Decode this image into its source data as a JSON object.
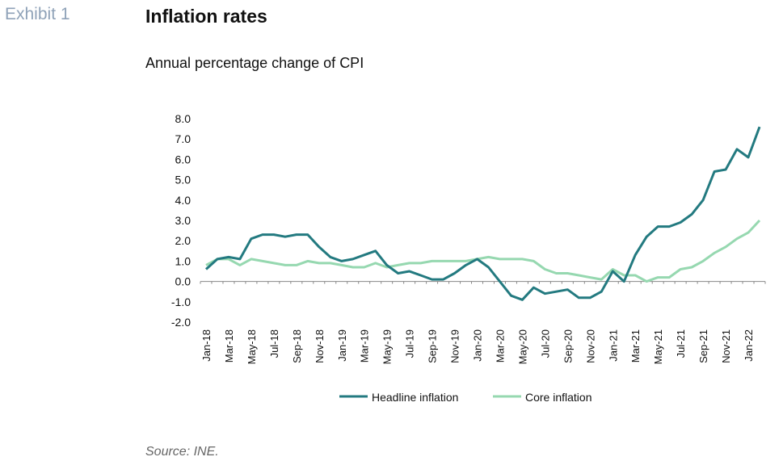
{
  "header": {
    "exhibit_label": "Exhibit 1",
    "title": "Inflation rates",
    "subtitle": "Annual percentage change of CPI"
  },
  "footer": {
    "source": "Source: INE."
  },
  "colors": {
    "headline": "#237a80",
    "core": "#96d8b0"
  },
  "chart_data": {
    "type": "line",
    "ylim": [
      -2,
      8
    ],
    "yticks": [
      -2,
      -1,
      0,
      1,
      2,
      3,
      4,
      5,
      6,
      7,
      8
    ],
    "ytick_labels": [
      "-2.0",
      "-1.0",
      "0.0",
      "1.0",
      "2.0",
      "3.0",
      "4.0",
      "5.0",
      "6.0",
      "7.0",
      "8.0"
    ],
    "grid": false,
    "legend_position": "bottom",
    "x": [
      "Jan-18",
      "Feb-18",
      "Mar-18",
      "Apr-18",
      "May-18",
      "Jun-18",
      "Jul-18",
      "Aug-18",
      "Sep-18",
      "Oct-18",
      "Nov-18",
      "Dec-18",
      "Jan-19",
      "Feb-19",
      "Mar-19",
      "Apr-19",
      "May-19",
      "Jun-19",
      "Jul-19",
      "Aug-19",
      "Sep-19",
      "Oct-19",
      "Nov-19",
      "Dec-19",
      "Jan-20",
      "Feb-20",
      "Mar-20",
      "Apr-20",
      "May-20",
      "Jun-20",
      "Jul-20",
      "Aug-20",
      "Sep-20",
      "Oct-20",
      "Nov-20",
      "Dec-20",
      "Jan-21",
      "Feb-21",
      "Mar-21",
      "Apr-21",
      "May-21",
      "Jun-21",
      "Jul-21",
      "Aug-21",
      "Sep-21",
      "Oct-21",
      "Nov-21",
      "Dec-21",
      "Jan-22",
      "Feb-22"
    ],
    "tick_labels": [
      "Jan-18",
      "Mar-18",
      "May-18",
      "Jul-18",
      "Sep-18",
      "Nov-18",
      "Jan-19",
      "Mar-19",
      "May-19",
      "Jul-19",
      "Sep-19",
      "Nov-19",
      "Jan-20",
      "Mar-20",
      "May-20",
      "Jul-20",
      "Sep-20",
      "Nov-20",
      "Jan-21",
      "Mar-21",
      "May-21",
      "Jul-21",
      "Sep-21",
      "Nov-21",
      "Jan-22"
    ],
    "series": [
      {
        "name": "Headline inflation",
        "values": [
          0.6,
          1.1,
          1.2,
          1.1,
          2.1,
          2.3,
          2.3,
          2.2,
          2.3,
          2.3,
          1.7,
          1.2,
          1.0,
          1.1,
          1.3,
          1.5,
          0.8,
          0.4,
          0.5,
          0.3,
          0.1,
          0.1,
          0.4,
          0.8,
          1.1,
          0.7,
          0.0,
          -0.7,
          -0.9,
          -0.3,
          -0.6,
          -0.5,
          -0.4,
          -0.8,
          -0.8,
          -0.5,
          0.5,
          0.0,
          1.3,
          2.2,
          2.7,
          2.7,
          2.9,
          3.3,
          4.0,
          5.4,
          5.5,
          6.5,
          6.1,
          7.6
        ]
      },
      {
        "name": "Core inflation",
        "values": [
          0.8,
          1.1,
          1.1,
          0.8,
          1.1,
          1.0,
          0.9,
          0.8,
          0.8,
          1.0,
          0.9,
          0.9,
          0.8,
          0.7,
          0.7,
          0.9,
          0.7,
          0.8,
          0.9,
          0.9,
          1.0,
          1.0,
          1.0,
          1.0,
          1.1,
          1.2,
          1.1,
          1.1,
          1.1,
          1.0,
          0.6,
          0.4,
          0.4,
          0.3,
          0.2,
          0.1,
          0.6,
          0.3,
          0.3,
          0.0,
          0.2,
          0.2,
          0.6,
          0.7,
          1.0,
          1.4,
          1.7,
          2.1,
          2.4,
          3.0
        ]
      }
    ]
  }
}
